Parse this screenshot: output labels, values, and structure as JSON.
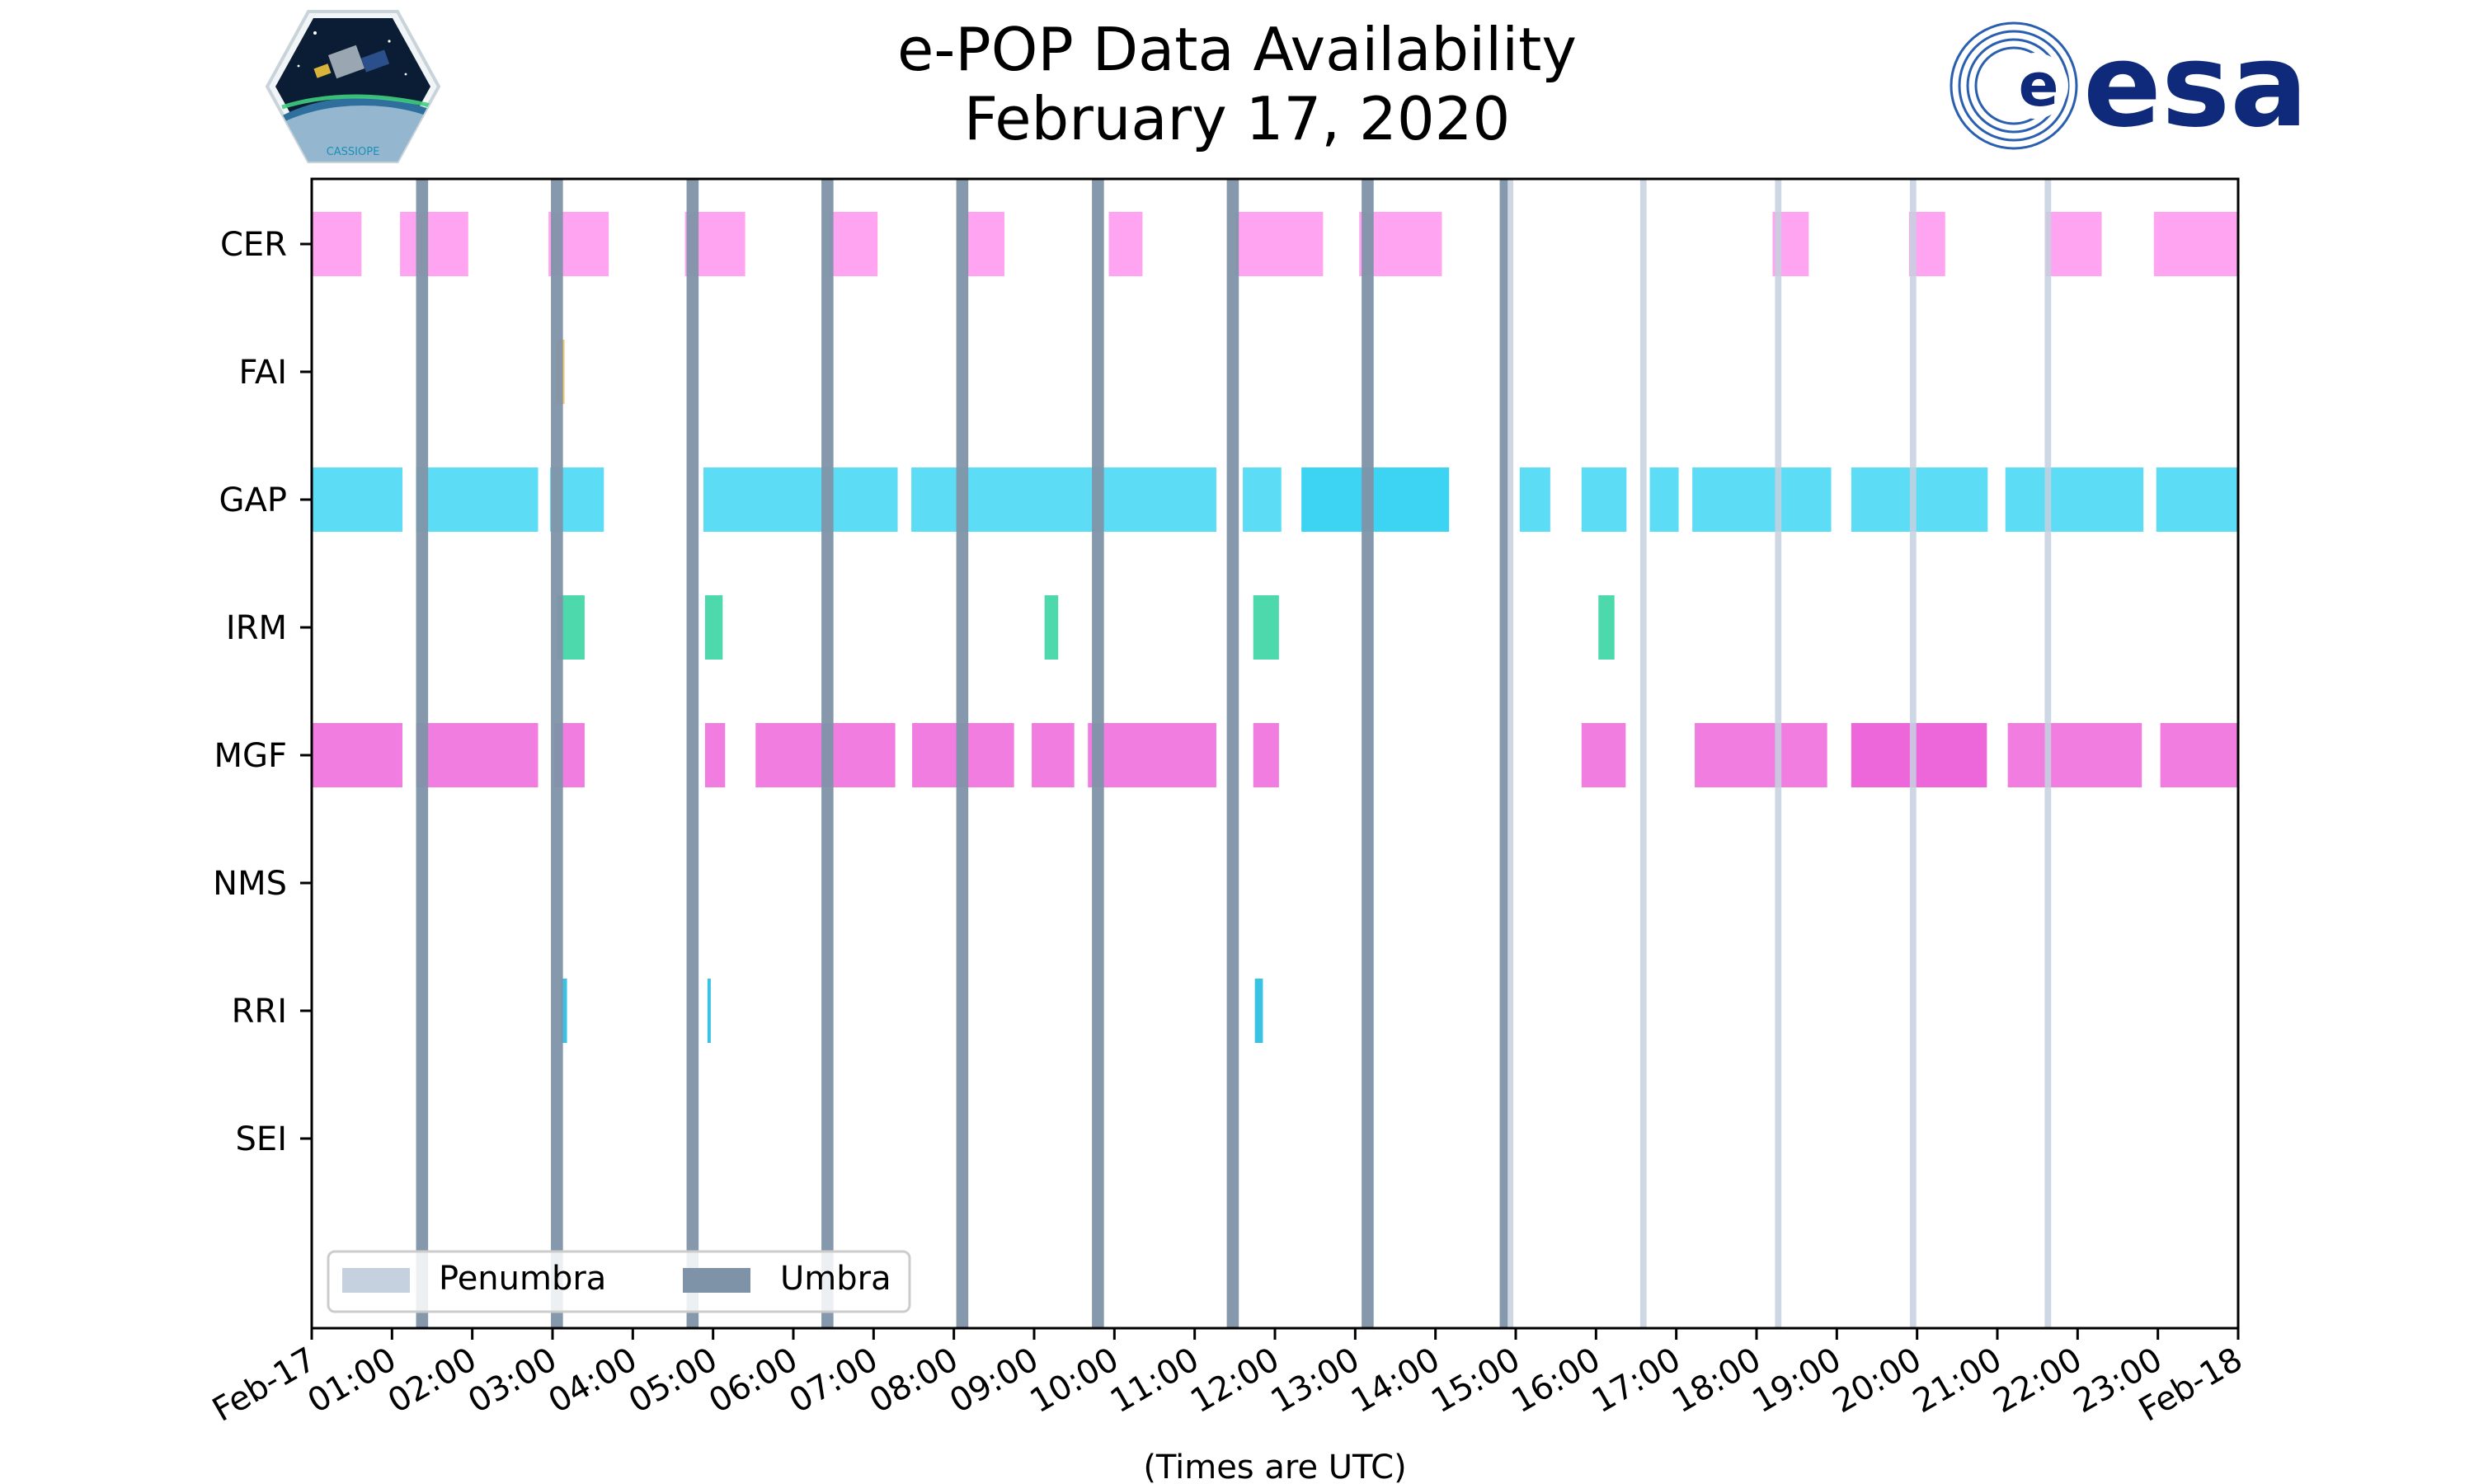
{
  "title_line1": "e-POP Data Availability",
  "title_line2": "February 17, 2020",
  "logos": {
    "left": {
      "icon": "cassiope-mission-patch",
      "text": "CASSIOPE"
    },
    "right": {
      "icon": "esa-logo",
      "text": "esa"
    }
  },
  "colors": {
    "CER": "#ff9cf0",
    "FAI": "#f2c46a",
    "GAP": "#4fd9f5",
    "GAP_dark": "#2cd0f2",
    "IRM": "#3fd6a6",
    "MGF": "#f072de",
    "MGF_dark": "#ec5ad8",
    "RRI": "#29bde0",
    "umbra": "#7f93a8",
    "penumbra": "#c5d1df",
    "frame": "#000000"
  },
  "chart_data": {
    "type": "timeline",
    "xlabel": "(Times are UTC)",
    "xlim": [
      0,
      24
    ],
    "x_ticks": [
      {
        "h": 0,
        "label": "Feb-17"
      },
      {
        "h": 1,
        "label": "01:00"
      },
      {
        "h": 2,
        "label": "02:00"
      },
      {
        "h": 3,
        "label": "03:00"
      },
      {
        "h": 4,
        "label": "04:00"
      },
      {
        "h": 5,
        "label": "05:00"
      },
      {
        "h": 6,
        "label": "06:00"
      },
      {
        "h": 7,
        "label": "07:00"
      },
      {
        "h": 8,
        "label": "08:00"
      },
      {
        "h": 9,
        "label": "09:00"
      },
      {
        "h": 10,
        "label": "10:00"
      },
      {
        "h": 11,
        "label": "11:00"
      },
      {
        "h": 12,
        "label": "12:00"
      },
      {
        "h": 13,
        "label": "13:00"
      },
      {
        "h": 14,
        "label": "14:00"
      },
      {
        "h": 15,
        "label": "15:00"
      },
      {
        "h": 16,
        "label": "16:00"
      },
      {
        "h": 17,
        "label": "17:00"
      },
      {
        "h": 18,
        "label": "18:00"
      },
      {
        "h": 19,
        "label": "19:00"
      },
      {
        "h": 20,
        "label": "20:00"
      },
      {
        "h": 21,
        "label": "21:00"
      },
      {
        "h": 22,
        "label": "22:00"
      },
      {
        "h": 23,
        "label": "23:00"
      },
      {
        "h": 24,
        "label": "Feb-18"
      }
    ],
    "instruments": [
      "CER",
      "FAI",
      "GAP",
      "IRM",
      "MGF",
      "NMS",
      "RRI",
      "SEI"
    ],
    "series": [
      {
        "name": "CER",
        "intervals": [
          [
            0.0,
            0.62
          ],
          [
            1.1,
            1.95
          ],
          [
            2.95,
            3.7
          ],
          [
            4.65,
            5.4
          ],
          [
            6.45,
            7.05
          ],
          [
            8.15,
            8.63
          ],
          [
            9.93,
            10.35
          ],
          [
            11.5,
            12.6
          ],
          [
            13.05,
            14.08
          ],
          [
            18.2,
            18.65
          ],
          [
            19.9,
            20.35
          ],
          [
            21.6,
            22.3
          ],
          [
            22.95,
            24.0
          ]
        ]
      },
      {
        "name": "FAI",
        "intervals": [
          [
            3.05,
            3.15
          ]
        ]
      },
      {
        "name": "GAP",
        "intervals": [
          [
            0.0,
            1.13
          ],
          [
            1.3,
            2.82
          ],
          [
            2.97,
            3.64
          ],
          [
            4.88,
            7.3
          ],
          [
            7.47,
            11.27
          ],
          [
            11.6,
            12.08
          ],
          [
            12.33,
            14.17
          ],
          [
            15.05,
            15.43
          ],
          [
            15.82,
            16.38
          ],
          [
            16.67,
            17.03
          ],
          [
            17.2,
            18.93
          ],
          [
            19.18,
            20.88
          ],
          [
            21.1,
            22.82
          ],
          [
            22.98,
            24.0
          ]
        ],
        "dark_intervals": [
          [
            12.33,
            14.17
          ]
        ]
      },
      {
        "name": "IRM",
        "intervals": [
          [
            3.05,
            3.4
          ],
          [
            4.9,
            5.12
          ],
          [
            9.13,
            9.3
          ],
          [
            11.73,
            12.05
          ],
          [
            16.03,
            16.23
          ]
        ]
      },
      {
        "name": "MGF",
        "intervals": [
          [
            0.0,
            1.13
          ],
          [
            1.3,
            2.82
          ],
          [
            3.02,
            3.4
          ],
          [
            4.9,
            5.15
          ],
          [
            5.53,
            7.27
          ],
          [
            7.48,
            8.75
          ],
          [
            8.97,
            9.5
          ],
          [
            9.67,
            11.27
          ],
          [
            11.73,
            12.05
          ],
          [
            15.82,
            16.37
          ],
          [
            17.23,
            18.88
          ],
          [
            19.18,
            20.87
          ],
          [
            21.13,
            22.8
          ],
          [
            23.03,
            24.0
          ]
        ],
        "dark_intervals": [
          [
            19.18,
            20.87
          ]
        ]
      },
      {
        "name": "NMS",
        "intervals": []
      },
      {
        "name": "RRI",
        "intervals": [
          [
            3.1,
            3.18
          ],
          [
            4.93,
            4.97
          ],
          [
            11.75,
            11.85
          ]
        ]
      },
      {
        "name": "SEI",
        "intervals": []
      }
    ],
    "umbra": [
      [
        1.3,
        1.45
      ],
      [
        2.98,
        3.13
      ],
      [
        4.67,
        4.82
      ],
      [
        6.35,
        6.5
      ],
      [
        8.03,
        8.18
      ],
      [
        9.72,
        9.87
      ],
      [
        11.4,
        11.55
      ],
      [
        13.08,
        13.23
      ],
      [
        14.8,
        14.9
      ]
    ],
    "penumbra": [
      [
        14.9,
        14.97
      ],
      [
        16.55,
        16.63
      ],
      [
        18.23,
        18.31
      ],
      [
        19.91,
        19.99
      ],
      [
        21.59,
        21.67
      ]
    ],
    "legend": {
      "position": "bottom-left",
      "entries": [
        {
          "label": "Penumbra",
          "key": "penumbra"
        },
        {
          "label": "Umbra",
          "key": "umbra"
        }
      ]
    }
  }
}
